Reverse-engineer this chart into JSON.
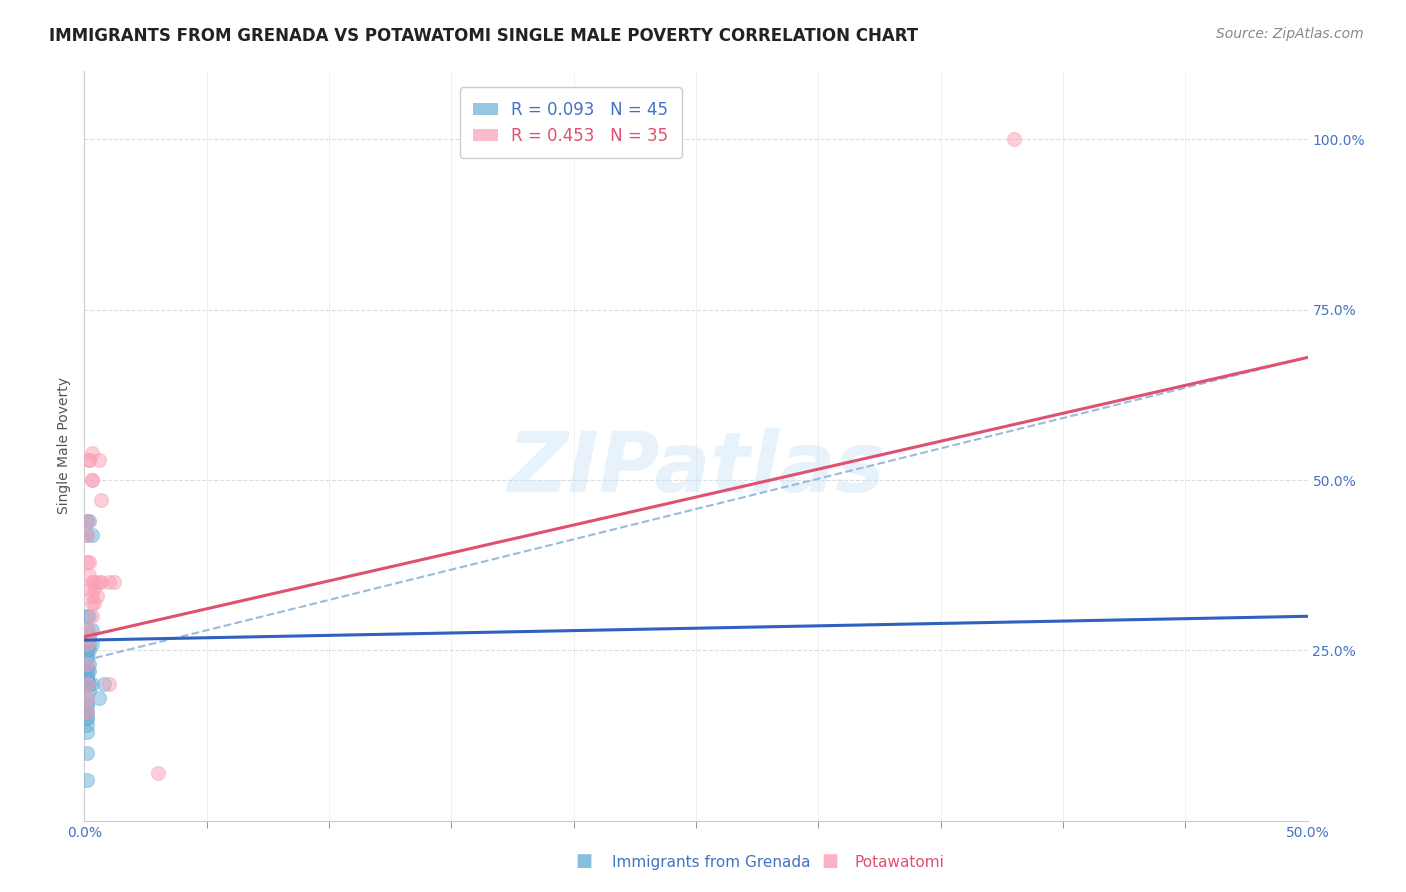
{
  "title": "IMMIGRANTS FROM GRENADA VS POTAWATOMI SINGLE MALE POVERTY CORRELATION CHART",
  "source": "Source: ZipAtlas.com",
  "ylabel": "Single Male Poverty",
  "xlim": [
    0.0,
    0.5
  ],
  "ylim": [
    0.0,
    1.1
  ],
  "legend_entries": [
    {
      "label": "R = 0.093   N = 45",
      "color": "#90c0e8"
    },
    {
      "label": "R = 0.453   N = 35",
      "color": "#f4a0b8"
    }
  ],
  "blue_scatter_x": [
    0.001,
    0.002,
    0.001,
    0.003,
    0.001,
    0.002,
    0.001,
    0.003,
    0.002,
    0.001,
    0.001,
    0.001,
    0.002,
    0.003,
    0.001,
    0.001,
    0.002,
    0.001,
    0.001,
    0.002,
    0.001,
    0.001,
    0.002,
    0.001,
    0.001,
    0.001,
    0.001,
    0.002,
    0.001,
    0.001,
    0.003,
    0.002,
    0.001,
    0.001,
    0.001,
    0.001,
    0.001,
    0.001,
    0.001,
    0.001,
    0.001,
    0.008,
    0.001,
    0.006,
    0.001
  ],
  "blue_scatter_y": [
    0.44,
    0.44,
    0.42,
    0.42,
    0.3,
    0.3,
    0.28,
    0.28,
    0.27,
    0.27,
    0.27,
    0.26,
    0.26,
    0.26,
    0.25,
    0.25,
    0.25,
    0.24,
    0.24,
    0.23,
    0.23,
    0.22,
    0.22,
    0.22,
    0.21,
    0.21,
    0.21,
    0.2,
    0.2,
    0.2,
    0.2,
    0.19,
    0.18,
    0.17,
    0.17,
    0.16,
    0.16,
    0.15,
    0.15,
    0.14,
    0.13,
    0.2,
    0.06,
    0.18,
    0.1
  ],
  "pink_scatter_x": [
    0.001,
    0.001,
    0.002,
    0.003,
    0.002,
    0.003,
    0.003,
    0.001,
    0.002,
    0.002,
    0.004,
    0.003,
    0.004,
    0.002,
    0.005,
    0.003,
    0.004,
    0.003,
    0.003,
    0.002,
    0.001,
    0.001,
    0.006,
    0.007,
    0.006,
    0.007,
    0.01,
    0.012,
    0.01,
    0.03,
    0.38,
    0.001,
    0.001,
    0.001,
    0.001
  ],
  "pink_scatter_y": [
    0.44,
    0.42,
    0.53,
    0.54,
    0.53,
    0.5,
    0.5,
    0.38,
    0.38,
    0.36,
    0.35,
    0.35,
    0.34,
    0.34,
    0.33,
    0.33,
    0.32,
    0.32,
    0.3,
    0.28,
    0.27,
    0.26,
    0.53,
    0.47,
    0.35,
    0.35,
    0.35,
    0.35,
    0.2,
    0.07,
    1.0,
    0.23,
    0.2,
    0.18,
    0.16
  ],
  "blue_line": {
    "x0": 0.0,
    "x1": 0.5,
    "y0": 0.265,
    "y1": 0.3
  },
  "pink_line": {
    "x0": 0.0,
    "x1": 0.5,
    "y0": 0.27,
    "y1": 0.68
  },
  "dash_line": {
    "x0": 0.0,
    "x1": 0.5,
    "y0": 0.235,
    "y1": 0.68
  },
  "background_color": "#ffffff",
  "grid_color": "#dddddd",
  "watermark_text": "ZIPatlas",
  "watermark_color": "#c5dff5",
  "watermark_alpha": 0.4,
  "scatter_size": 100,
  "scatter_alpha": 0.5,
  "blue_color": "#6baed6",
  "pink_color": "#fa9fb5",
  "blue_line_color": "#3060c0",
  "pink_line_color": "#e05070",
  "dash_line_color": "#9abcdc",
  "title_fontsize": 12,
  "axis_label_fontsize": 10,
  "tick_fontsize": 10,
  "legend_fontsize": 12,
  "source_fontsize": 10,
  "yticks": [
    0.25,
    0.5,
    0.75,
    1.0
  ],
  "ytick_labels": [
    "25.0%",
    "50.0%",
    "75.0%",
    "100.0%"
  ],
  "xtick_minor_positions": [
    0.05,
    0.1,
    0.15,
    0.2,
    0.25,
    0.3,
    0.35,
    0.4,
    0.45
  ]
}
